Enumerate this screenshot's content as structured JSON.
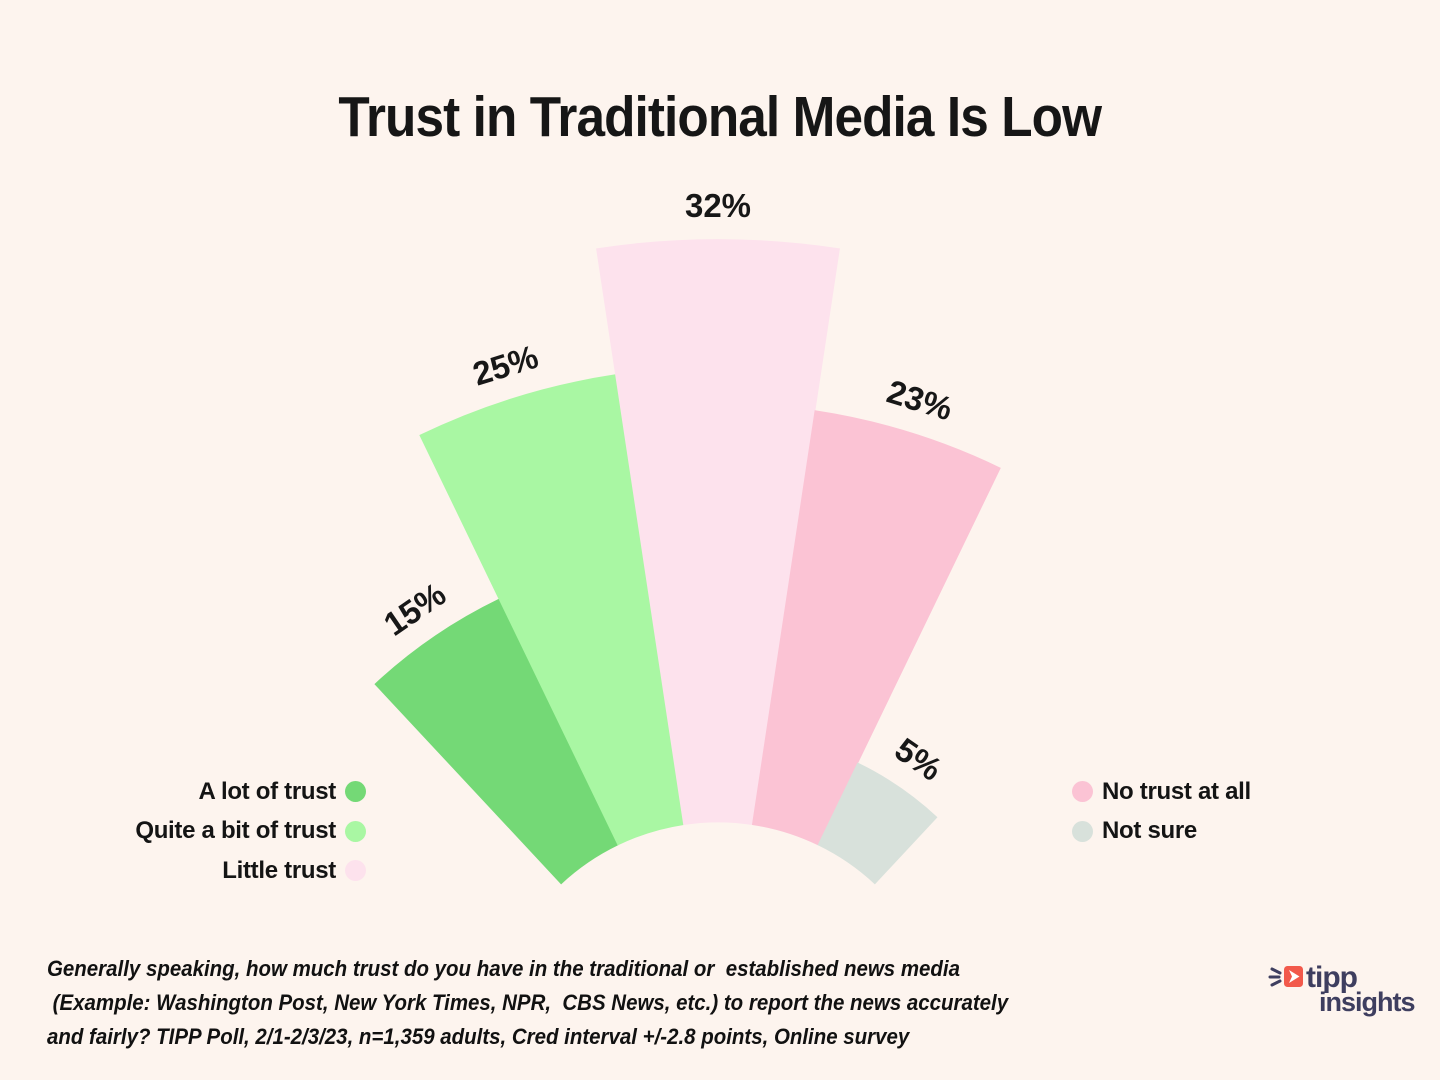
{
  "title": "Trust in Traditional Media Is Low",
  "chart_data": {
    "type": "bar",
    "variant": "radial-fan",
    "description": "Five contiguous fan wedges radiating from a common bottom center; wedge radial length encodes percent value",
    "categories": [
      "A lot of trust",
      "Quite a bit of trust",
      "Little trust",
      "No trust at all",
      "Not sure"
    ],
    "values": [
      15,
      25,
      32,
      23,
      5
    ],
    "data_labels": [
      "15%",
      "25%",
      "32%",
      "23%",
      "5%"
    ],
    "colors": [
      "#74D976",
      "#A9F7A3",
      "#FDE2ED",
      "#FBC3D4",
      "#D8E1DB"
    ],
    "unit": "%",
    "title": "Trust in Traditional Media Is Low",
    "legend_position": "bottom left and bottom right",
    "grid": "off",
    "axes": "none"
  },
  "legend": {
    "left": [
      {
        "label": "A lot of trust",
        "color": "#74D976"
      },
      {
        "label": "Quite a bit of trust",
        "color": "#A9F7A3"
      },
      {
        "label": "Little trust",
        "color": "#FDE2ED"
      }
    ],
    "right": [
      {
        "label": "No trust at all",
        "color": "#FBC3D4"
      },
      {
        "label": "Not sure",
        "color": "#D8E1DB"
      }
    ]
  },
  "footnote_lines": [
    "Generally speaking, how much trust do you have in the traditional or  established news media",
    " (Example: Washington Post, New York Times, NPR,  CBS News, etc.) to report the news accurately",
    "and fairly? TIPP Poll, 2/1-2/3/23, n=1,359 adults, Cred interval +/-2.8 points, Online survey"
  ],
  "logo": {
    "word_top": "tipp",
    "word_bottom": "insights",
    "icon_color": "#F2594B",
    "text_color": "#3E3E5F"
  },
  "colors": {
    "background": "#FDF4EE",
    "text": "#171717"
  }
}
